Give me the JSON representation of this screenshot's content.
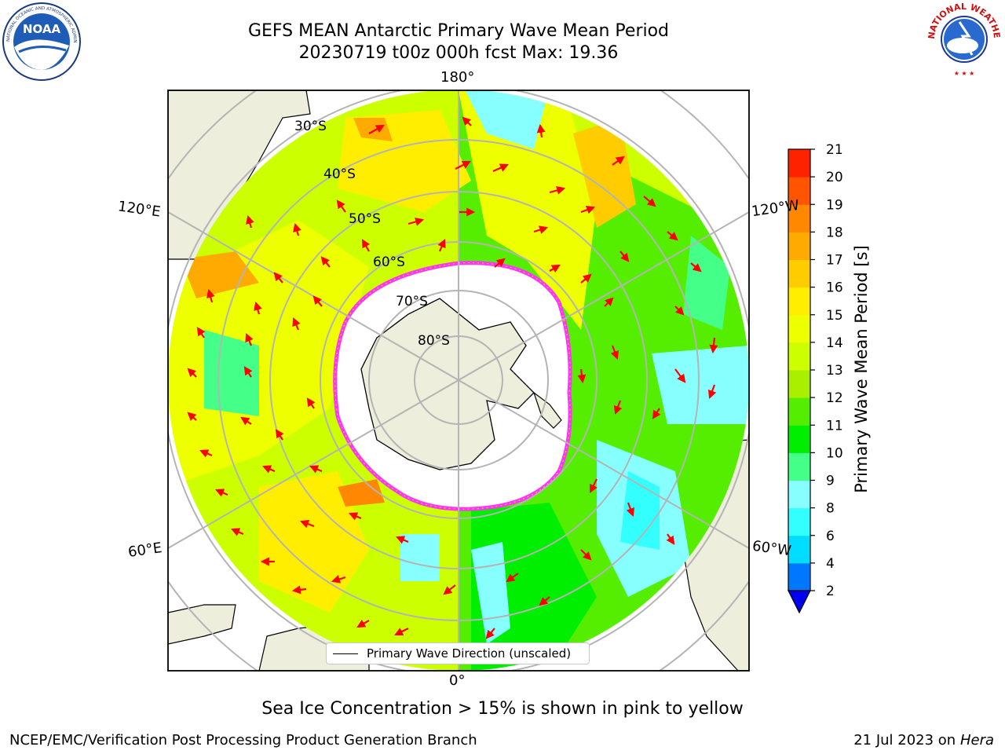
{
  "header": {
    "title_line1": "GEFS MEAN Antarctic Primary Wave Mean Period",
    "title_line2": "20230719 t00z 000h fcst   Max: 19.36"
  },
  "logos": {
    "noaa": {
      "icon": "noaa-logo",
      "text": "NOAA",
      "ring_text": "NATIONAL OCEANIC AND ATMOSPHERIC ADMINISTRATION · U.S. DEPARTMENT OF COMMERCE"
    },
    "nws": {
      "icon": "nws-logo",
      "ring_text": "NATIONAL WEATHER SERVICE"
    }
  },
  "map": {
    "projection": "south polar stereographic",
    "longitude_labels": {
      "top": "180°",
      "bottom": "0°",
      "upper_left": "120°E",
      "upper_right": "120°W",
      "lower_left": "60°E",
      "lower_right": "60°W"
    },
    "latitude_labels": [
      "30°S",
      "40°S",
      "50°S",
      "60°S",
      "70°S",
      "80°S"
    ],
    "legend": {
      "label": "Primary Wave Direction (unscaled)"
    },
    "colors": {
      "land": "#eeeedc",
      "sea_ice": "#ffffff",
      "ice_edge": "#ff33ff",
      "gridlines": "#b4b4b4",
      "arrows": "#ff0000",
      "coastline": "#000000"
    }
  },
  "colorbar": {
    "label": "Primary Wave Mean Period [s]",
    "ticks": [
      "2",
      "4",
      "6",
      "8",
      "9",
      "10",
      "11",
      "12",
      "13",
      "14",
      "15",
      "16",
      "17",
      "18",
      "19",
      "20",
      "21"
    ],
    "colors": [
      "#0077ff",
      "#00ddff",
      "#33ffff",
      "#88ffff",
      "#44ff88",
      "#00ee00",
      "#55ee00",
      "#aaee00",
      "#ccff00",
      "#eeff00",
      "#ffee00",
      "#ffcc00",
      "#ffaa00",
      "#ff8800",
      "#ff5500",
      "#ff2200"
    ],
    "under_color": "#0000ee"
  },
  "note": "Sea Ice Concentration > 15% is shown in pink to yellow",
  "footer": {
    "left": "NCEP/EMC/Verification Post Processing Product Generation Branch",
    "right_prefix": "21 Jul 2023 on ",
    "right_host": "Hera"
  }
}
